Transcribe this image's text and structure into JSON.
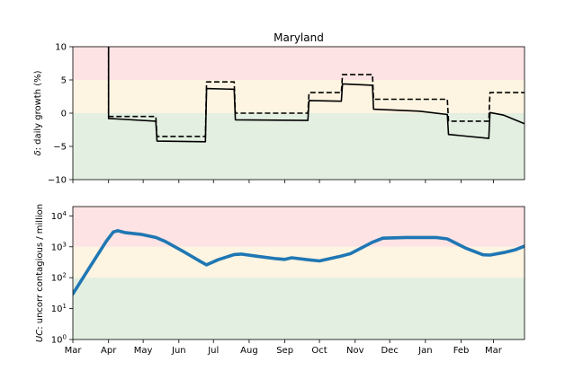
{
  "chart_data": [
    {
      "type": "line",
      "title": "Maryland",
      "ylabel_symbol": "δ",
      "ylabel_text": ": daily growth (%)",
      "ylim": [
        -10,
        10
      ],
      "yticks": [
        -10,
        -5,
        0,
        5,
        10
      ],
      "ytick_labels": [
        "−10",
        "−5",
        "0",
        "5",
        "10"
      ],
      "bands": [
        {
          "from": 5,
          "to": 10,
          "color": "#fde3e3"
        },
        {
          "from": 0,
          "to": 5,
          "color": "#fdf4e1"
        },
        {
          "from": -10,
          "to": 0,
          "color": "#e3efe1"
        }
      ],
      "series": [
        {
          "style": "solid",
          "color": "#000000",
          "points": [
            [
              "2020-04-01",
              10.5
            ],
            [
              "2020-04-01",
              -0.8
            ],
            [
              "2020-05-12",
              -1.2
            ],
            [
              "2020-05-13",
              -4.2
            ],
            [
              "2020-06-24",
              -4.3
            ],
            [
              "2020-06-25",
              3.7
            ],
            [
              "2020-07-19",
              3.6
            ],
            [
              "2020-07-20",
              -1.0
            ],
            [
              "2020-09-21",
              -1.1
            ],
            [
              "2020-09-22",
              1.9
            ],
            [
              "2020-10-20",
              1.8
            ],
            [
              "2020-10-21",
              4.4
            ],
            [
              "2020-11-16",
              4.2
            ],
            [
              "2020-11-17",
              0.6
            ],
            [
              "2020-12-27",
              0.3
            ],
            [
              "2021-01-20",
              -0.2
            ],
            [
              "2021-01-21",
              -3.2
            ],
            [
              "2021-02-25",
              -3.8
            ],
            [
              "2021-02-26",
              0.1
            ],
            [
              "2021-03-10",
              -0.3
            ],
            [
              "2021-03-28",
              -1.6
            ]
          ]
        },
        {
          "style": "dashed",
          "color": "#000000",
          "points": [
            [
              "2020-04-01",
              10.5
            ],
            [
              "2020-04-01",
              -0.5
            ],
            [
              "2020-05-12",
              -0.5
            ],
            [
              "2020-05-13",
              -3.5
            ],
            [
              "2020-06-24",
              -3.5
            ],
            [
              "2020-06-25",
              4.7
            ],
            [
              "2020-07-19",
              4.7
            ],
            [
              "2020-07-20",
              0.0
            ],
            [
              "2020-09-21",
              0.0
            ],
            [
              "2020-09-22",
              3.1
            ],
            [
              "2020-10-20",
              3.1
            ],
            [
              "2020-10-21",
              5.8
            ],
            [
              "2020-11-16",
              5.8
            ],
            [
              "2020-11-17",
              2.1
            ],
            [
              "2021-01-20",
              2.1
            ],
            [
              "2021-01-21",
              -1.2
            ],
            [
              "2021-02-25",
              -1.2
            ],
            [
              "2021-02-26",
              3.1
            ],
            [
              "2021-03-28",
              3.1
            ]
          ]
        }
      ]
    },
    {
      "type": "line",
      "ylabel_symbol": "UC",
      "ylabel_text": ": uncorr contagious / million",
      "yscale": "log",
      "ylim": [
        1,
        20000
      ],
      "yticks": [
        1,
        10,
        100,
        1000,
        10000
      ],
      "ytick_base": "10",
      "ytick_exponents": [
        "0",
        "1",
        "2",
        "3",
        "4"
      ],
      "bands": [
        {
          "from": 1000,
          "to": 20000,
          "color": "#fde3e3"
        },
        {
          "from": 100,
          "to": 1000,
          "color": "#fdf4e1"
        },
        {
          "from": 1,
          "to": 100,
          "color": "#e3efe1"
        }
      ],
      "xlim": [
        "2020-03-01",
        "2021-03-28"
      ],
      "x_tick_dates": [
        "2020-03-01",
        "2020-04-01",
        "2020-05-01",
        "2020-06-01",
        "2020-07-01",
        "2020-08-01",
        "2020-09-01",
        "2020-10-01",
        "2020-11-01",
        "2020-12-01",
        "2021-01-01",
        "2021-02-01",
        "2021-03-01"
      ],
      "x_tick_labels": [
        "Mar",
        "Apr",
        "May",
        "Jun",
        "Jul",
        "Aug",
        "Sep",
        "Oct",
        "Nov",
        "Dec",
        "Jan",
        "Feb",
        "Mar"
      ],
      "series": [
        {
          "style": "solid",
          "color": "#1f77b4",
          "points": [
            [
              "2020-03-01",
              30
            ],
            [
              "2020-03-15",
              200
            ],
            [
              "2020-03-30",
              1500
            ],
            [
              "2020-04-05",
              3000
            ],
            [
              "2020-04-09",
              3300
            ],
            [
              "2020-04-15",
              2900
            ],
            [
              "2020-04-30",
              2500
            ],
            [
              "2020-05-12",
              2000
            ],
            [
              "2020-05-20",
              1500
            ],
            [
              "2020-06-05",
              700
            ],
            [
              "2020-06-20",
              330
            ],
            [
              "2020-06-25",
              260
            ],
            [
              "2020-07-05",
              380
            ],
            [
              "2020-07-19",
              560
            ],
            [
              "2020-07-25",
              580
            ],
            [
              "2020-08-10",
              480
            ],
            [
              "2020-08-25",
              410
            ],
            [
              "2020-09-01",
              390
            ],
            [
              "2020-09-07",
              440
            ],
            [
              "2020-09-21",
              380
            ],
            [
              "2020-10-01",
              350
            ],
            [
              "2020-10-20",
              500
            ],
            [
              "2020-10-28",
              600
            ],
            [
              "2020-11-16",
              1400
            ],
            [
              "2020-11-25",
              1900
            ],
            [
              "2020-12-15",
              2000
            ],
            [
              "2021-01-10",
              2000
            ],
            [
              "2021-01-20",
              1800
            ],
            [
              "2021-02-05",
              900
            ],
            [
              "2021-02-20",
              550
            ],
            [
              "2021-02-26",
              540
            ],
            [
              "2021-03-10",
              650
            ],
            [
              "2021-03-20",
              800
            ],
            [
              "2021-03-28",
              1050
            ]
          ]
        }
      ]
    }
  ]
}
